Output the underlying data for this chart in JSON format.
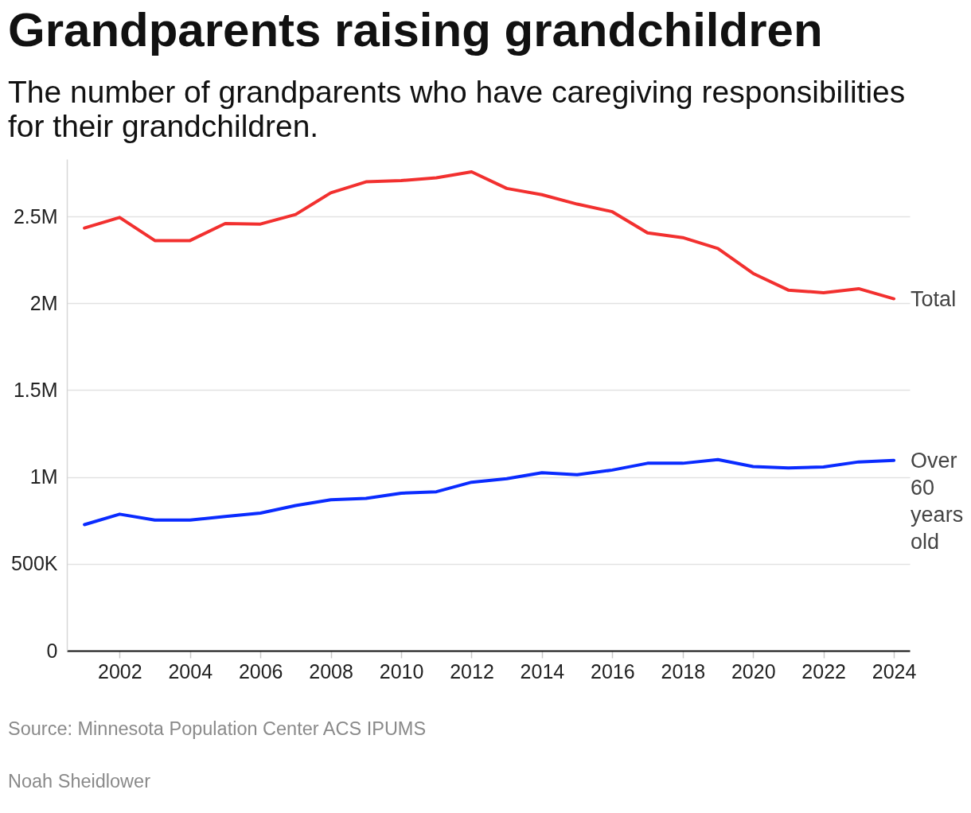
{
  "chart_data": {
    "type": "line",
    "title": "Grandparents raising grandchildren",
    "subtitle": "The number of grandparents who have caregiving responsibilities for their grandchildren.",
    "x": [
      2001,
      2002,
      2003,
      2004,
      2005,
      2006,
      2007,
      2008,
      2009,
      2010,
      2011,
      2012,
      2013,
      2014,
      2015,
      2016,
      2017,
      2018,
      2019,
      2020,
      2021,
      2022,
      2023,
      2024
    ],
    "series": [
      {
        "name": "Total",
        "color": "#f2302f",
        "values": [
          2433000,
          2494000,
          2361000,
          2361000,
          2459000,
          2456000,
          2511000,
          2636000,
          2699000,
          2706000,
          2722000,
          2757000,
          2661000,
          2625000,
          2571000,
          2527000,
          2405000,
          2378000,
          2315000,
          2172000,
          2076000,
          2061000,
          2084000,
          2026000
        ]
      },
      {
        "name": "Over 60 years old",
        "color": "#0a2bff",
        "values": [
          726000,
          786000,
          752000,
          752000,
          773000,
          792000,
          836000,
          869000,
          877000,
          907000,
          915000,
          970000,
          990000,
          1025000,
          1013000,
          1040000,
          1079000,
          1079000,
          1100000,
          1060000,
          1052000,
          1058000,
          1087000,
          1096000
        ]
      }
    ],
    "xlim": [
      2000.5,
      2024.45
    ],
    "xticks": [
      2002,
      2004,
      2006,
      2008,
      2010,
      2012,
      2014,
      2016,
      2018,
      2020,
      2022,
      2024
    ],
    "ylim": [
      0,
      2830000
    ],
    "yticks": [
      0,
      {
        "value": 500000,
        "label": "500K"
      },
      {
        "value": 1000000,
        "label": "1M"
      },
      {
        "value": 1500000,
        "label": "1.5M"
      },
      {
        "value": 2000000,
        "label": "2M"
      },
      {
        "value": 2500000,
        "label": "2.5M"
      }
    ],
    "grid": "y",
    "annotations": [
      "Source: Minnesota Population Center ACS IPUMS",
      "Noah Sheidlower"
    ]
  }
}
